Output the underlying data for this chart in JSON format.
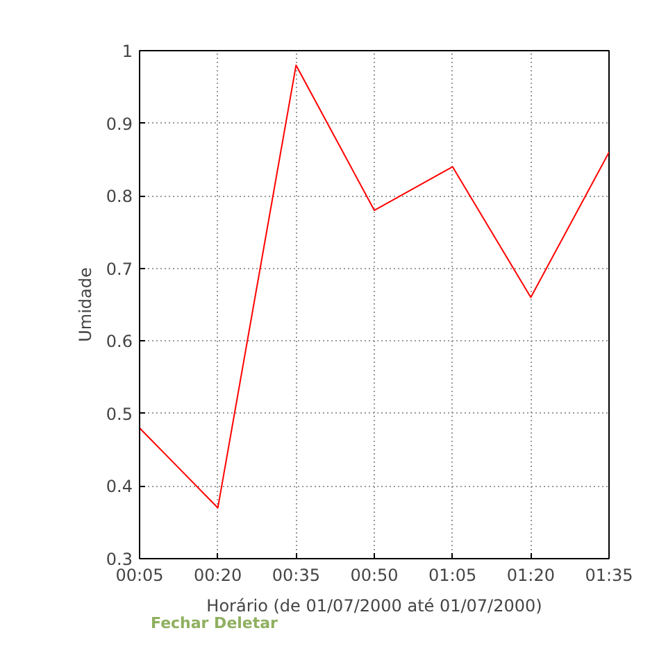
{
  "chart_data": {
    "type": "line",
    "xlabel": "Horário (de 01/07/2000 até 01/07/2000)",
    "ylabel": "Umidade",
    "x": [
      0.0833,
      0.3333,
      0.5833,
      0.8333,
      1.0833,
      1.3333,
      1.5833
    ],
    "series": [
      {
        "color": "#ff0000",
        "values": [
          0.48,
          0.37,
          0.98,
          0.78,
          0.84,
          0.66,
          0.86
        ]
      }
    ],
    "xlim": [
      0.0833,
      1.5833
    ],
    "xticks": [
      {
        "value": 0.0833,
        "label": "00:05"
      },
      {
        "value": 0.3333,
        "label": "00:20"
      },
      {
        "value": 0.5833,
        "label": "00:35"
      },
      {
        "value": 0.8333,
        "label": "00:50"
      },
      {
        "value": 1.0833,
        "label": "01:05"
      },
      {
        "value": 1.3333,
        "label": "01:20"
      },
      {
        "value": 1.5833,
        "label": "01:35"
      }
    ],
    "ylim": [
      0.3,
      1
    ],
    "yticks": [
      0.3,
      0.4,
      0.5,
      0.6,
      0.7,
      0.8,
      0.9,
      1
    ],
    "grid": true,
    "marker": "none",
    "line_style": "solid",
    "annotations": [
      "Fechar Deletar"
    ]
  }
}
